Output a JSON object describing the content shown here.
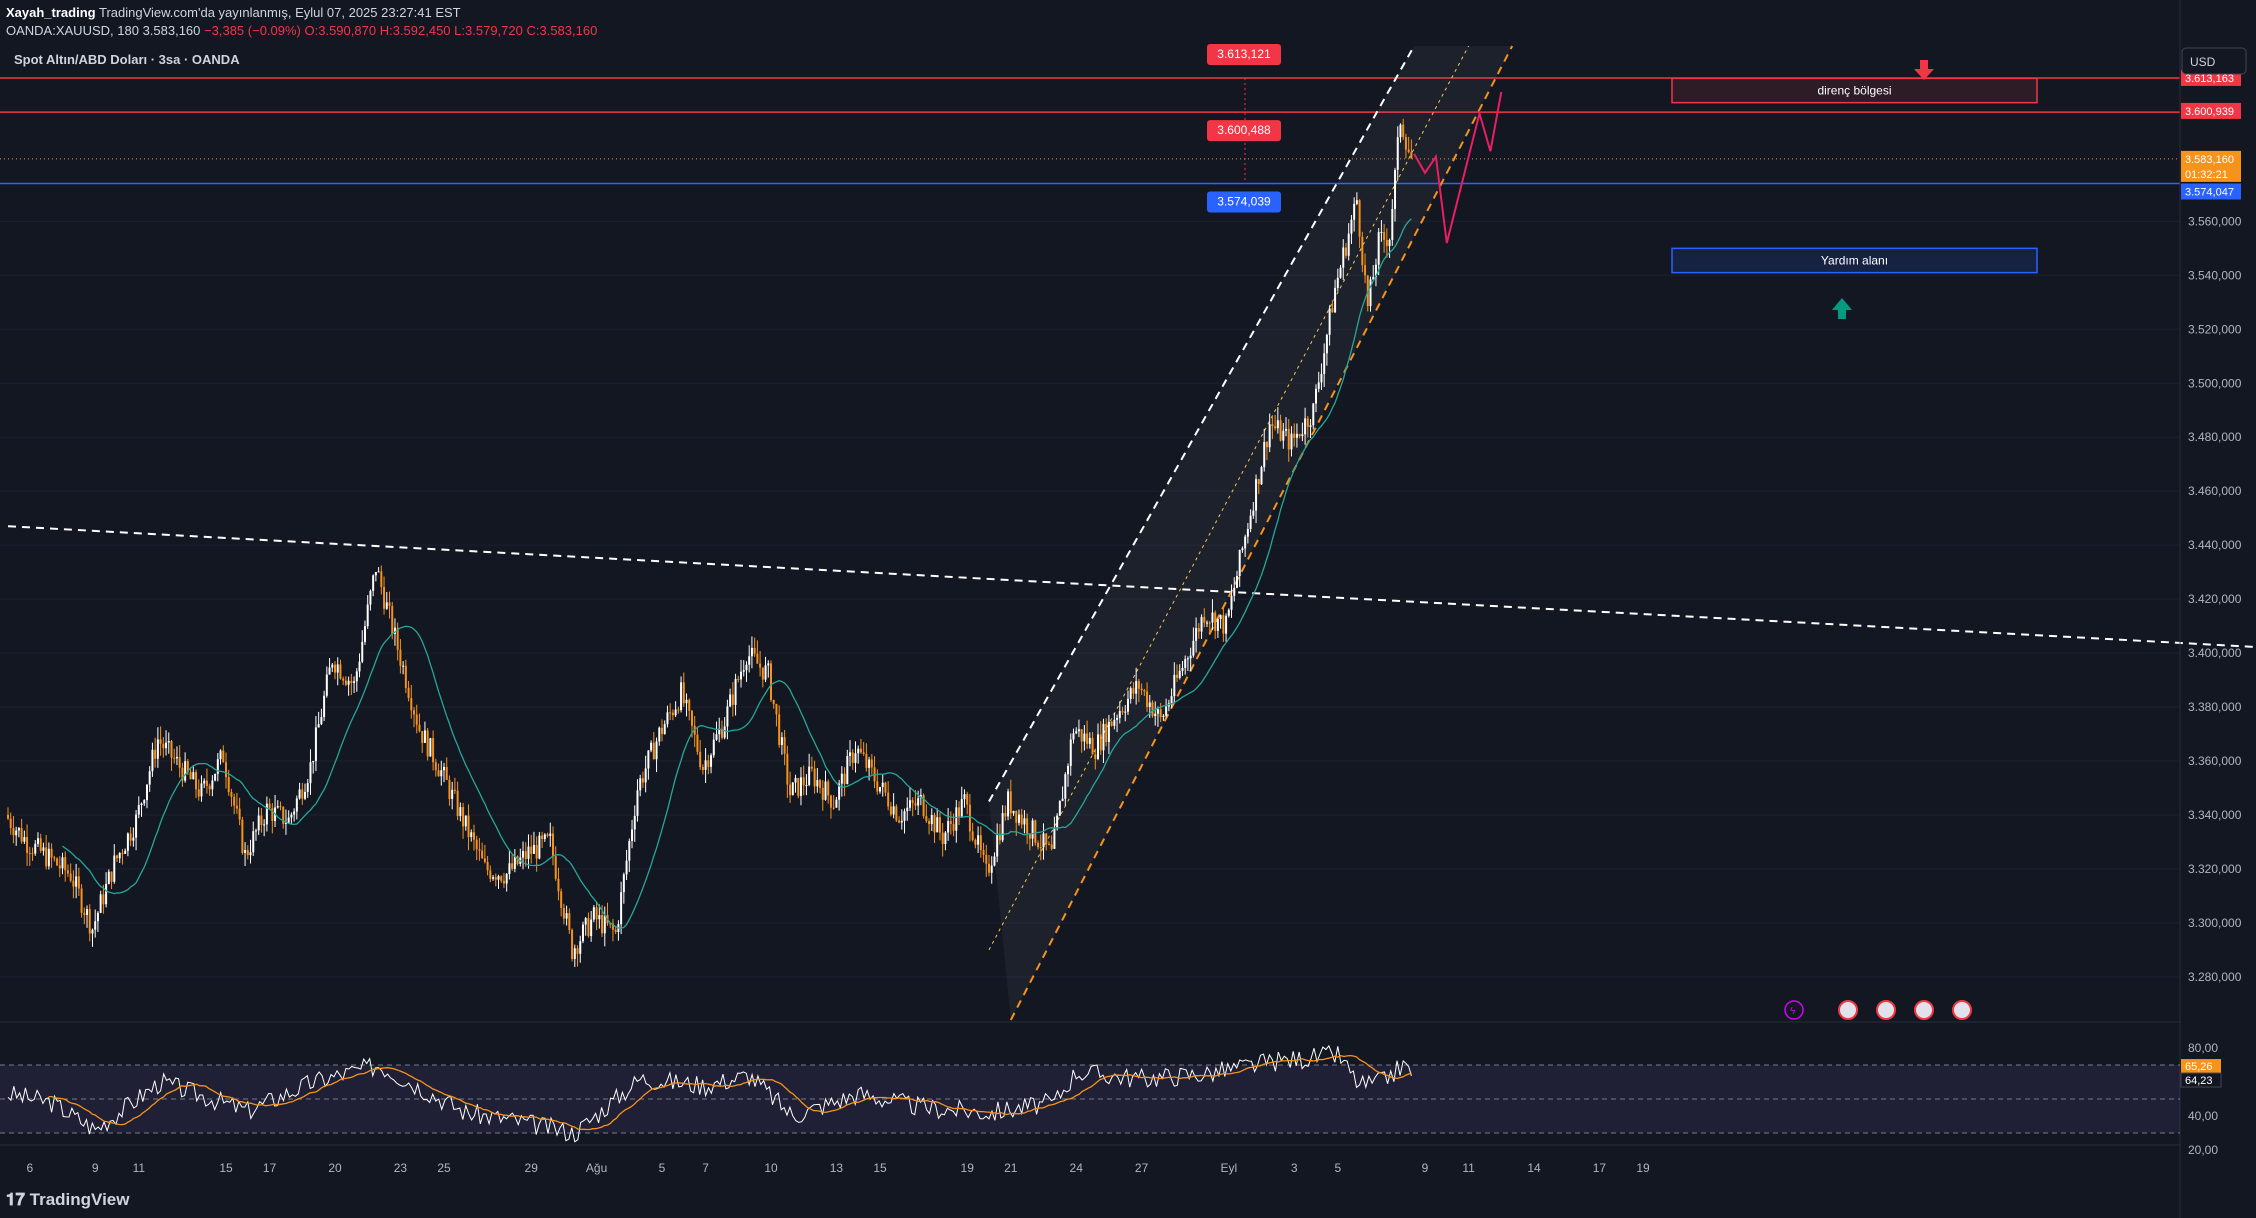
{
  "header": {
    "author": "Xayah_trading",
    "published": "TradingView.com'da yayınlanmış, Eylul 07, 2025 23:27:41 EST",
    "symbol": "OANDA:XAUUSD, 180",
    "last": "3.583,160",
    "change": "−3,385 (−0.09%)",
    "open": "O:3.590,870",
    "high": "H:3.592,450",
    "low": "L:3.579,720",
    "close": "C:3.583,160"
  },
  "chart_title": "Spot Altın/ABD Doları · 3sa · OANDA",
  "currency_button": "USD",
  "footer_logo": "TradingView",
  "colors": {
    "background": "#131722",
    "bull": "#ffffff",
    "bear": "#f7931a",
    "resistance_line": "#f23645",
    "support_line": "#2962ff",
    "ma": "#26a69a",
    "rsi": "#ffffff",
    "rsi_ma": "#f7931a"
  },
  "chart_data": {
    "type": "candlestick",
    "price_axis": {
      "ylim": [
        3264,
        3625
      ],
      "ticks": [
        "3.280,000",
        "3.300,000",
        "3.320,000",
        "3.340,000",
        "3.360,000",
        "3.380,000",
        "3.400,000",
        "3.420,000",
        "3.440,000",
        "3.460,000",
        "3.480,000",
        "3.500,000",
        "3.520,000",
        "3.540,000",
        "3.560,000"
      ],
      "tick_values": [
        3280,
        3300,
        3320,
        3340,
        3360,
        3380,
        3400,
        3420,
        3440,
        3460,
        3480,
        3500,
        3520,
        3540,
        3560
      ]
    },
    "time_axis": {
      "labels": [
        "6",
        "9",
        "11",
        "15",
        "17",
        "20",
        "23",
        "25",
        "29",
        "Ağu",
        "5",
        "7",
        "10",
        "13",
        "15",
        "19",
        "21",
        "24",
        "27",
        "Eyl",
        "3",
        "5",
        "9",
        "11",
        "14",
        "17",
        "19"
      ]
    },
    "price_labels": [
      {
        "text": "3.613,163",
        "value": 3613.163,
        "color": "#f23645"
      },
      {
        "text": "3.600,939",
        "value": 3600.939,
        "color": "#f23645"
      },
      {
        "text": "3.583,160",
        "value": 3583.16,
        "color": "#f7931a"
      },
      {
        "text": "01:32:21",
        "value": 3583.16,
        "color": "#f7931a"
      },
      {
        "text": "3.574,047",
        "value": 3574.047,
        "color": "#2962ff"
      }
    ],
    "level_tags": [
      {
        "text": "3.613,121",
        "value": 3613.121,
        "color": "#f23645"
      },
      {
        "text": "3.600,488",
        "value": 3600.488,
        "color": "#f23645"
      },
      {
        "text": "3.574,039",
        "value": 3574.039,
        "color": "#2962ff"
      }
    ],
    "zones": [
      {
        "label": "direnç bölgesi",
        "top": 3613,
        "bottom": 3604
      },
      {
        "label": "Yardım alanı",
        "top": 3550,
        "bottom": 3541
      }
    ],
    "anchors": [
      {
        "d": "2025-06-05",
        "p": 3340
      },
      {
        "d": "2025-06-06",
        "p": 3330
      },
      {
        "d": "2025-06-08",
        "p": 3318
      },
      {
        "d": "2025-06-09",
        "p": 3298
      },
      {
        "d": "2025-06-10",
        "p": 3322
      },
      {
        "d": "2025-06-11",
        "p": 3338
      },
      {
        "d": "2025-06-12",
        "p": 3368
      },
      {
        "d": "2025-06-14",
        "p": 3348
      },
      {
        "d": "2025-06-15",
        "p": 3362
      },
      {
        "d": "2025-06-16",
        "p": 3325
      },
      {
        "d": "2025-06-17",
        "p": 3342
      },
      {
        "d": "2025-06-18",
        "p": 3338
      },
      {
        "d": "2025-06-19",
        "p": 3358
      },
      {
        "d": "2025-06-20",
        "p": 3398
      },
      {
        "d": "2025-06-21",
        "p": 3388
      },
      {
        "d": "2025-06-22",
        "p": 3432
      },
      {
        "d": "2025-06-23",
        "p": 3402
      },
      {
        "d": "2025-06-24",
        "p": 3372
      },
      {
        "d": "2025-06-25",
        "p": 3356
      },
      {
        "d": "2025-06-26",
        "p": 3338
      },
      {
        "d": "2025-06-27",
        "p": 3320
      },
      {
        "d": "2025-06-28",
        "p": 3318
      },
      {
        "d": "2025-06-29",
        "p": 3326
      },
      {
        "d": "2025-06-30",
        "p": 3330
      },
      {
        "d": "2025-07-01",
        "p": 3290
      },
      {
        "d": "2025-07-02",
        "p": 3302
      },
      {
        "d": "2025-07-03",
        "p": 3296
      },
      {
        "d": "2025-07-04",
        "p": 3350
      },
      {
        "d": "2025-07-05",
        "p": 3370
      },
      {
        "d": "2025-07-06",
        "p": 3385
      },
      {
        "d": "2025-07-07",
        "p": 3358
      },
      {
        "d": "2025-07-08",
        "p": 3375
      },
      {
        "d": "2025-07-09",
        "p": 3400
      },
      {
        "d": "2025-07-10",
        "p": 3392
      },
      {
        "d": "2025-07-11",
        "p": 3348
      },
      {
        "d": "2025-07-12",
        "p": 3355
      },
      {
        "d": "2025-07-13",
        "p": 3345
      },
      {
        "d": "2025-07-14",
        "p": 3365
      },
      {
        "d": "2025-07-15",
        "p": 3352
      },
      {
        "d": "2025-07-16",
        "p": 3340
      },
      {
        "d": "2025-07-17",
        "p": 3345
      },
      {
        "d": "2025-07-18",
        "p": 3332
      },
      {
        "d": "2025-07-19",
        "p": 3345
      },
      {
        "d": "2025-07-20",
        "p": 3318
      },
      {
        "d": "2025-07-21",
        "p": 3345
      },
      {
        "d": "2025-07-22",
        "p": 3335
      },
      {
        "d": "2025-07-23",
        "p": 3325
      },
      {
        "d": "2025-07-24",
        "p": 3372
      },
      {
        "d": "2025-07-25",
        "p": 3365
      },
      {
        "d": "2025-07-26",
        "p": 3378
      },
      {
        "d": "2025-07-27",
        "p": 3388
      },
      {
        "d": "2025-07-28",
        "p": 3375
      },
      {
        "d": "2025-07-29",
        "p": 3395
      },
      {
        "d": "2025-07-30",
        "p": 3415
      },
      {
        "d": "2025-07-31",
        "p": 3410
      },
      {
        "d": "2025-08-01",
        "p": 3448
      },
      {
        "d": "2025-08-02",
        "p": 3485
      },
      {
        "d": "2025-08-03",
        "p": 3478
      },
      {
        "d": "2025-08-04",
        "p": 3490
      },
      {
        "d": "2025-08-05",
        "p": 3535
      },
      {
        "d": "2025-08-06",
        "p": 3568
      },
      {
        "d": "2025-08-06T12:00",
        "p": 3528
      },
      {
        "d": "2025-08-07",
        "p": 3552
      },
      {
        "d": "2025-08-07T12:00",
        "p": 3555
      },
      {
        "d": "2025-08-08",
        "p": 3598
      },
      {
        "d": "2025-08-08T12:00",
        "p": 3583
      }
    ],
    "ma_last": 3560,
    "dashed_lines": [
      {
        "from": {
          "d": "2025-06-05",
          "p": 3447
        },
        "to": {
          "d": "2025-09-19",
          "p": 3401
        },
        "color": "#ffffff"
      },
      {
        "from": {
          "d": "2025-07-20",
          "p": 3345
        },
        "to": {
          "d": "2025-08-08T12:00",
          "p": 3625
        },
        "color": "#ffffff"
      },
      {
        "from": {
          "d": "2025-07-20",
          "p": 3290
        },
        "to": {
          "d": "2025-08-11",
          "p": 3625
        },
        "color": "#f7c948"
      },
      {
        "from": {
          "d": "2025-07-21",
          "p": 3264
        },
        "to": {
          "d": "2025-08-13",
          "p": 3625
        },
        "color": "#f7931a"
      }
    ],
    "projection": [
      {
        "d": "2025-08-08T12:00",
        "p": 3585
      },
      {
        "d": "2025-08-09",
        "p": 3578
      },
      {
        "d": "2025-08-09T12:00",
        "p": 3584
      },
      {
        "d": "2025-08-10",
        "p": 3552
      },
      {
        "d": "2025-08-11T12:00",
        "p": 3600
      },
      {
        "d": "2025-08-12",
        "p": 3586
      },
      {
        "d": "2025-08-12T12:00",
        "p": 3608
      }
    ],
    "rsi": {
      "ylim": [
        20,
        80
      ],
      "ticks": [
        "80,00",
        "40,00",
        "20,00"
      ],
      "tick_values": [
        80,
        40,
        20
      ],
      "band": [
        70,
        30
      ],
      "last_rsi": "65,26",
      "last_ma": "64,23",
      "anchors": [
        {
          "d": "2025-06-05",
          "p": 53
        },
        {
          "d": "2025-06-07",
          "p": 48
        },
        {
          "d": "2025-06-09",
          "p": 32
        },
        {
          "d": "2025-06-12",
          "p": 60
        },
        {
          "d": "2025-06-16",
          "p": 43
        },
        {
          "d": "2025-06-19",
          "p": 60
        },
        {
          "d": "2025-06-22",
          "p": 70
        },
        {
          "d": "2025-06-26",
          "p": 42
        },
        {
          "d": "2025-06-28",
          "p": 38
        },
        {
          "d": "2025-07-01",
          "p": 30
        },
        {
          "d": "2025-07-04",
          "p": 62
        },
        {
          "d": "2025-07-07",
          "p": 58
        },
        {
          "d": "2025-07-09",
          "p": 64
        },
        {
          "d": "2025-07-11",
          "p": 40
        },
        {
          "d": "2025-07-14",
          "p": 53
        },
        {
          "d": "2025-07-17",
          "p": 45
        },
        {
          "d": "2025-07-20",
          "p": 42
        },
        {
          "d": "2025-07-23",
          "p": 48
        },
        {
          "d": "2025-07-24",
          "p": 66
        },
        {
          "d": "2025-07-27",
          "p": 62
        },
        {
          "d": "2025-07-30",
          "p": 65
        },
        {
          "d": "2025-08-02",
          "p": 72
        },
        {
          "d": "2025-08-05",
          "p": 76
        },
        {
          "d": "2025-08-06",
          "p": 58
        },
        {
          "d": "2025-08-07",
          "p": 60
        },
        {
          "d": "2025-08-08",
          "p": 70
        },
        {
          "d": "2025-08-08T12:00",
          "p": 65
        }
      ]
    }
  }
}
